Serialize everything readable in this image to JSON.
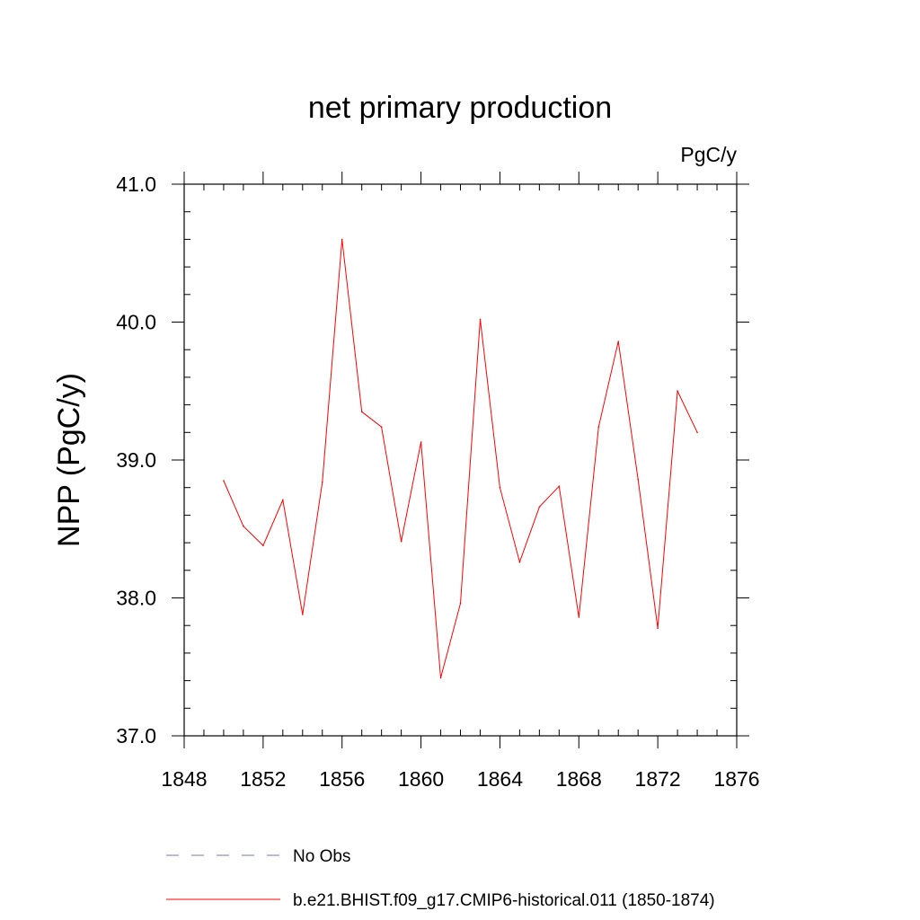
{
  "chart_data": {
    "type": "line",
    "title": "net primary production",
    "units": "PgC/y",
    "ylabel": "NPP  (PgC/y)",
    "xlabel": "",
    "xlim": [
      1848,
      1876
    ],
    "ylim": [
      37.0,
      41.0
    ],
    "x_ticks": [
      1848,
      1852,
      1856,
      1860,
      1864,
      1868,
      1872,
      1876
    ],
    "x_tick_labels": [
      "1848",
      "1852",
      "1856",
      "1860",
      "1864",
      "1868",
      "1872",
      "1876"
    ],
    "y_ticks": [
      37.0,
      38.0,
      39.0,
      40.0,
      41.0
    ],
    "y_tick_labels": [
      "37.0",
      "38.0",
      "39.0",
      "40.0",
      "41.0"
    ],
    "grid": false,
    "legend_position": "bottom",
    "series": [
      {
        "name": "b.e21.BHIST.f09_g17.CMIP6-historical.011 (1850-1874)",
        "color": "#ff0000",
        "style": "solid",
        "x": [
          1850,
          1851,
          1852,
          1853,
          1854,
          1855,
          1856,
          1857,
          1858,
          1859,
          1860,
          1861,
          1862,
          1863,
          1864,
          1865,
          1866,
          1867,
          1868,
          1869,
          1870,
          1871,
          1872,
          1873,
          1874
        ],
        "y": [
          38.85,
          38.52,
          38.38,
          38.71,
          37.88,
          38.84,
          40.6,
          39.35,
          39.24,
          38.41,
          39.13,
          37.42,
          37.96,
          40.02,
          38.8,
          38.26,
          38.66,
          38.81,
          37.86,
          39.24,
          39.86,
          38.86,
          37.78,
          39.5,
          39.2
        ]
      }
    ],
    "legend": [
      {
        "label": "No Obs",
        "color": "#7777bb",
        "style": "dashed"
      },
      {
        "label": "b.e21.BHIST.f09_g17.CMIP6-historical.011 (1850-1874)",
        "color": "#ff0000",
        "style": "solid"
      }
    ]
  }
}
